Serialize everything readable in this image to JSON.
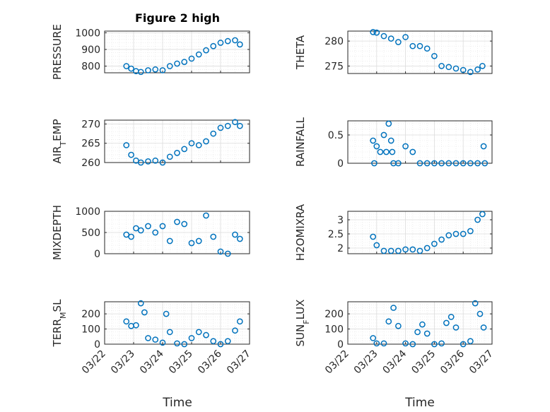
{
  "figure": {
    "title": "Figure 2 high",
    "xlabel": "Time",
    "marker_color": "#0072BD"
  },
  "chart_data": [
    {
      "type": "scatter",
      "ylabel": "PRESSURE",
      "xlim": [
        "03/22",
        "03/27"
      ],
      "ylim": [
        760,
        1010
      ],
      "yticks": [
        "800",
        "900",
        "1000"
      ],
      "grid": true,
      "x": [
        "03/22 18:00",
        "03/22 22:00",
        "03/23 02:00",
        "03/23 06:00",
        "03/23 12:00",
        "03/23 18:00",
        "03/24 00:00",
        "03/24 06:00",
        "03/24 12:00",
        "03/24 18:00",
        "03/25 00:00",
        "03/25 06:00",
        "03/25 12:00",
        "03/25 18:00",
        "03/26 00:00",
        "03/26 06:00",
        "03/26 12:00",
        "03/26 16:00"
      ],
      "y": [
        800,
        785,
        770,
        765,
        775,
        780,
        775,
        800,
        815,
        825,
        845,
        870,
        895,
        920,
        940,
        950,
        955,
        930
      ]
    },
    {
      "type": "scatter",
      "ylabel": "THETA",
      "xlim": [
        "03/22",
        "03/27"
      ],
      "ylim": [
        273.5,
        282
      ],
      "yticks": [
        "275",
        "280"
      ],
      "grid": true,
      "x": [
        "03/22 21:00",
        "03/23 00:00",
        "03/23 06:00",
        "03/23 12:00",
        "03/23 18:00",
        "03/24 00:00",
        "03/24 06:00",
        "03/24 12:00",
        "03/24 18:00",
        "03/25 00:00",
        "03/25 06:00",
        "03/25 12:00",
        "03/25 18:00",
        "03/26 00:00",
        "03/26 06:00",
        "03/26 12:00",
        "03/26 16:00"
      ],
      "y": [
        281.8,
        281.7,
        281.0,
        280.5,
        279.8,
        280.8,
        279.0,
        279.0,
        278.5,
        277.0,
        275.0,
        274.8,
        274.5,
        274.2,
        273.8,
        274.3,
        275.0
      ]
    },
    {
      "type": "scatter",
      "ylabel": "AIR_TEMP",
      "xlim": [
        "03/22",
        "03/27"
      ],
      "ylim": [
        260,
        271
      ],
      "yticks": [
        "260",
        "265",
        "270"
      ],
      "grid": true,
      "x": [
        "03/22 18:00",
        "03/22 22:00",
        "03/23 02:00",
        "03/23 06:00",
        "03/23 12:00",
        "03/23 18:00",
        "03/24 00:00",
        "03/24 06:00",
        "03/24 12:00",
        "03/24 18:00",
        "03/25 00:00",
        "03/25 06:00",
        "03/25 12:00",
        "03/25 18:00",
        "03/26 00:00",
        "03/26 06:00",
        "03/26 12:00",
        "03/26 16:00"
      ],
      "y": [
        264.5,
        262.0,
        260.5,
        260.0,
        260.3,
        260.5,
        260.0,
        261.5,
        262.5,
        263.5,
        265.0,
        264.5,
        265.5,
        267.5,
        269.0,
        269.5,
        270.5,
        269.5
      ]
    },
    {
      "type": "scatter",
      "ylabel": "RAINFALL",
      "xlim": [
        "03/22",
        "03/27"
      ],
      "ylim": [
        0,
        0.75
      ],
      "yticks": [
        "0",
        "0.5"
      ],
      "grid": true,
      "x": [
        "03/22 21:00",
        "03/22 22:00",
        "03/23 00:00",
        "03/23 03:00",
        "03/23 06:00",
        "03/23 08:00",
        "03/23 10:00",
        "03/23 12:00",
        "03/23 13:00",
        "03/23 14:00",
        "03/23 18:00",
        "03/24 00:00",
        "03/24 06:00",
        "03/24 12:00",
        "03/24 18:00",
        "03/25 00:00",
        "03/25 06:00",
        "03/25 12:00",
        "03/25 18:00",
        "03/26 00:00",
        "03/26 06:00",
        "03/26 12:00",
        "03/26 18:00",
        "03/26 17:00"
      ],
      "y": [
        0.4,
        0.0,
        0.3,
        0.2,
        0.5,
        0.2,
        0.7,
        0.4,
        0.2,
        0.0,
        0.0,
        0.3,
        0.2,
        0.0,
        0.0,
        0.0,
        0.0,
        0.0,
        0.0,
        0.0,
        0.0,
        0.0,
        0.0,
        0.3
      ]
    },
    {
      "type": "scatter",
      "ylabel": "MIXDEPTH",
      "xlim": [
        "03/22",
        "03/27"
      ],
      "ylim": [
        0,
        1000
      ],
      "yticks": [
        "0",
        "500",
        "1000"
      ],
      "grid": true,
      "x": [
        "03/22 18:00",
        "03/22 22:00",
        "03/23 02:00",
        "03/23 06:00",
        "03/23 12:00",
        "03/23 18:00",
        "03/24 00:00",
        "03/24 06:00",
        "03/24 12:00",
        "03/24 18:00",
        "03/25 00:00",
        "03/25 06:00",
        "03/25 12:00",
        "03/25 18:00",
        "03/26 00:00",
        "03/26 06:00",
        "03/26 12:00",
        "03/26 16:00"
      ],
      "y": [
        450,
        400,
        600,
        550,
        650,
        500,
        650,
        300,
        750,
        700,
        250,
        300,
        900,
        400,
        50,
        0,
        450,
        350
      ]
    },
    {
      "type": "scatter",
      "ylabel": "H2OMIXRA",
      "xlim": [
        "03/22",
        "03/27"
      ],
      "ylim": [
        1.8,
        3.3
      ],
      "yticks": [
        "2",
        "2.5",
        "3"
      ],
      "grid": true,
      "x": [
        "03/22 21:00",
        "03/23 00:00",
        "03/23 06:00",
        "03/23 12:00",
        "03/23 18:00",
        "03/24 00:00",
        "03/24 06:00",
        "03/24 12:00",
        "03/24 18:00",
        "03/25 00:00",
        "03/25 06:00",
        "03/25 12:00",
        "03/25 18:00",
        "03/26 00:00",
        "03/26 06:00",
        "03/26 12:00",
        "03/26 16:00"
      ],
      "y": [
        2.4,
        2.1,
        1.9,
        1.9,
        1.9,
        1.95,
        1.95,
        1.9,
        2.0,
        2.15,
        2.3,
        2.45,
        2.5,
        2.5,
        2.6,
        3.0,
        3.2
      ]
    },
    {
      "type": "scatter",
      "ylabel": "TERR_MSL",
      "xlim": [
        "03/22",
        "03/27"
      ],
      "ylim": [
        0,
        280
      ],
      "yticks": [
        "0",
        "100",
        "200"
      ],
      "grid": true,
      "x": [
        "03/22 18:00",
        "03/22 22:00",
        "03/23 02:00",
        "03/23 06:00",
        "03/23 09:00",
        "03/23 12:00",
        "03/23 18:00",
        "03/24 00:00",
        "03/24 03:00",
        "03/24 06:00",
        "03/24 12:00",
        "03/24 18:00",
        "03/25 00:00",
        "03/25 06:00",
        "03/25 12:00",
        "03/25 18:00",
        "03/26 00:00",
        "03/26 06:00",
        "03/26 12:00",
        "03/26 16:00"
      ],
      "y": [
        150,
        120,
        125,
        270,
        210,
        40,
        30,
        10,
        200,
        80,
        5,
        0,
        40,
        80,
        60,
        20,
        0,
        20,
        90,
        150
      ]
    },
    {
      "type": "scatter",
      "ylabel": "SUN_FLUX",
      "xlim": [
        "03/22",
        "03/27"
      ],
      "ylim": [
        0,
        280
      ],
      "yticks": [
        "0",
        "100",
        "200"
      ],
      "grid": true,
      "x": [
        "03/22 21:00",
        "03/23 00:00",
        "03/23 06:00",
        "03/23 10:00",
        "03/23 14:00",
        "03/23 18:00",
        "03/24 00:00",
        "03/24 06:00",
        "03/24 10:00",
        "03/24 14:00",
        "03/24 18:00",
        "03/25 00:00",
        "03/25 06:00",
        "03/25 10:00",
        "03/25 14:00",
        "03/25 18:00",
        "03/26 00:00",
        "03/26 06:00",
        "03/26 10:00",
        "03/26 14:00",
        "03/26 17:00"
      ],
      "y": [
        40,
        5,
        5,
        150,
        240,
        120,
        5,
        0,
        80,
        130,
        70,
        0,
        5,
        140,
        180,
        110,
        0,
        20,
        270,
        200,
        110
      ]
    }
  ]
}
